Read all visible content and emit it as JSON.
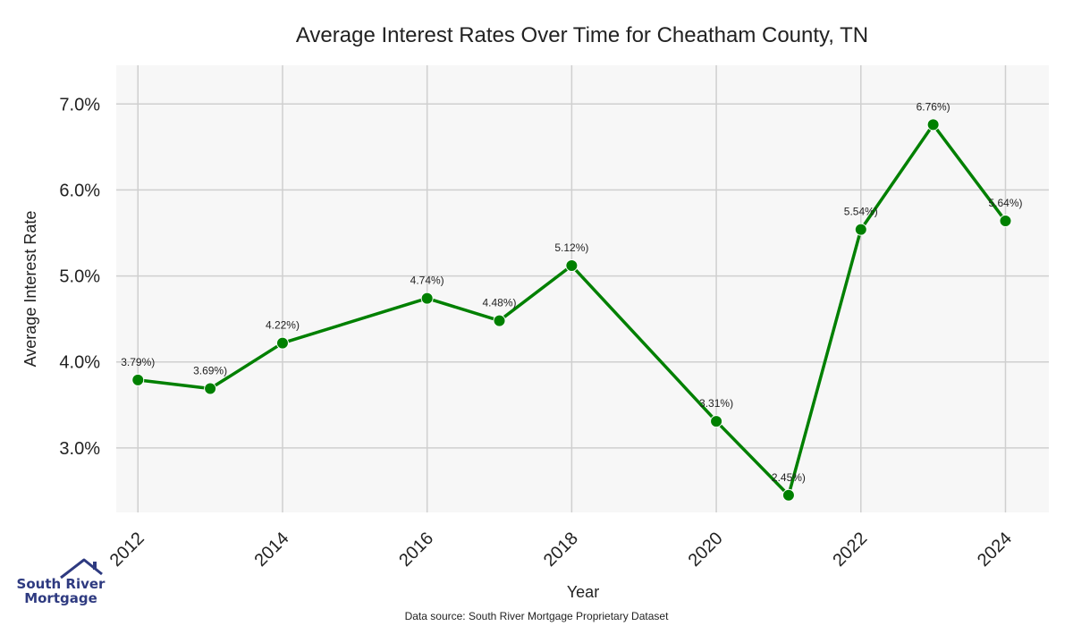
{
  "colors": {
    "series": "#008000",
    "plot_background": "#f7f7f7",
    "grid": "#cfcfcf",
    "logo": "#2e3a80"
  },
  "source_text": "Data source: South River Mortgage Proprietary Dataset",
  "logo": {
    "line1": "South River",
    "line2": "Mortgage",
    "icon": "house-roof-icon"
  },
  "chart_data": {
    "type": "line",
    "title": "Average Interest Rates Over Time for Cheatham County, TN",
    "xlabel": "Year",
    "ylabel": "Average Interest Rate",
    "x": [
      2012,
      2013,
      2014,
      2016,
      2017,
      2018,
      2020,
      2021,
      2022,
      2023,
      2024
    ],
    "values": [
      3.79,
      3.69,
      4.22,
      4.74,
      4.48,
      5.12,
      3.31,
      2.45,
      5.54,
      6.76,
      5.64
    ],
    "data_labels": [
      "3.79%)",
      "3.69%)",
      "4.22%)",
      "4.74%)",
      "4.48%)",
      "5.12%)",
      "3.31%)",
      "2.45%)",
      "5.54%)",
      "6.76%)",
      "5.64%)"
    ],
    "xticks": [
      2012,
      2014,
      2016,
      2018,
      2020,
      2022,
      2024
    ],
    "xtick_labels": [
      "2012",
      "2014",
      "2016",
      "2018",
      "2020",
      "2022",
      "2024"
    ],
    "yticks": [
      3.0,
      4.0,
      5.0,
      6.0,
      7.0
    ],
    "ytick_labels": [
      "3.0%",
      "4.0%",
      "5.0%",
      "6.0%",
      "7.0%"
    ],
    "xlim": [
      2011.7,
      2024.6
    ],
    "ylim": [
      2.25,
      7.45
    ],
    "grid": true,
    "legend": "none"
  }
}
